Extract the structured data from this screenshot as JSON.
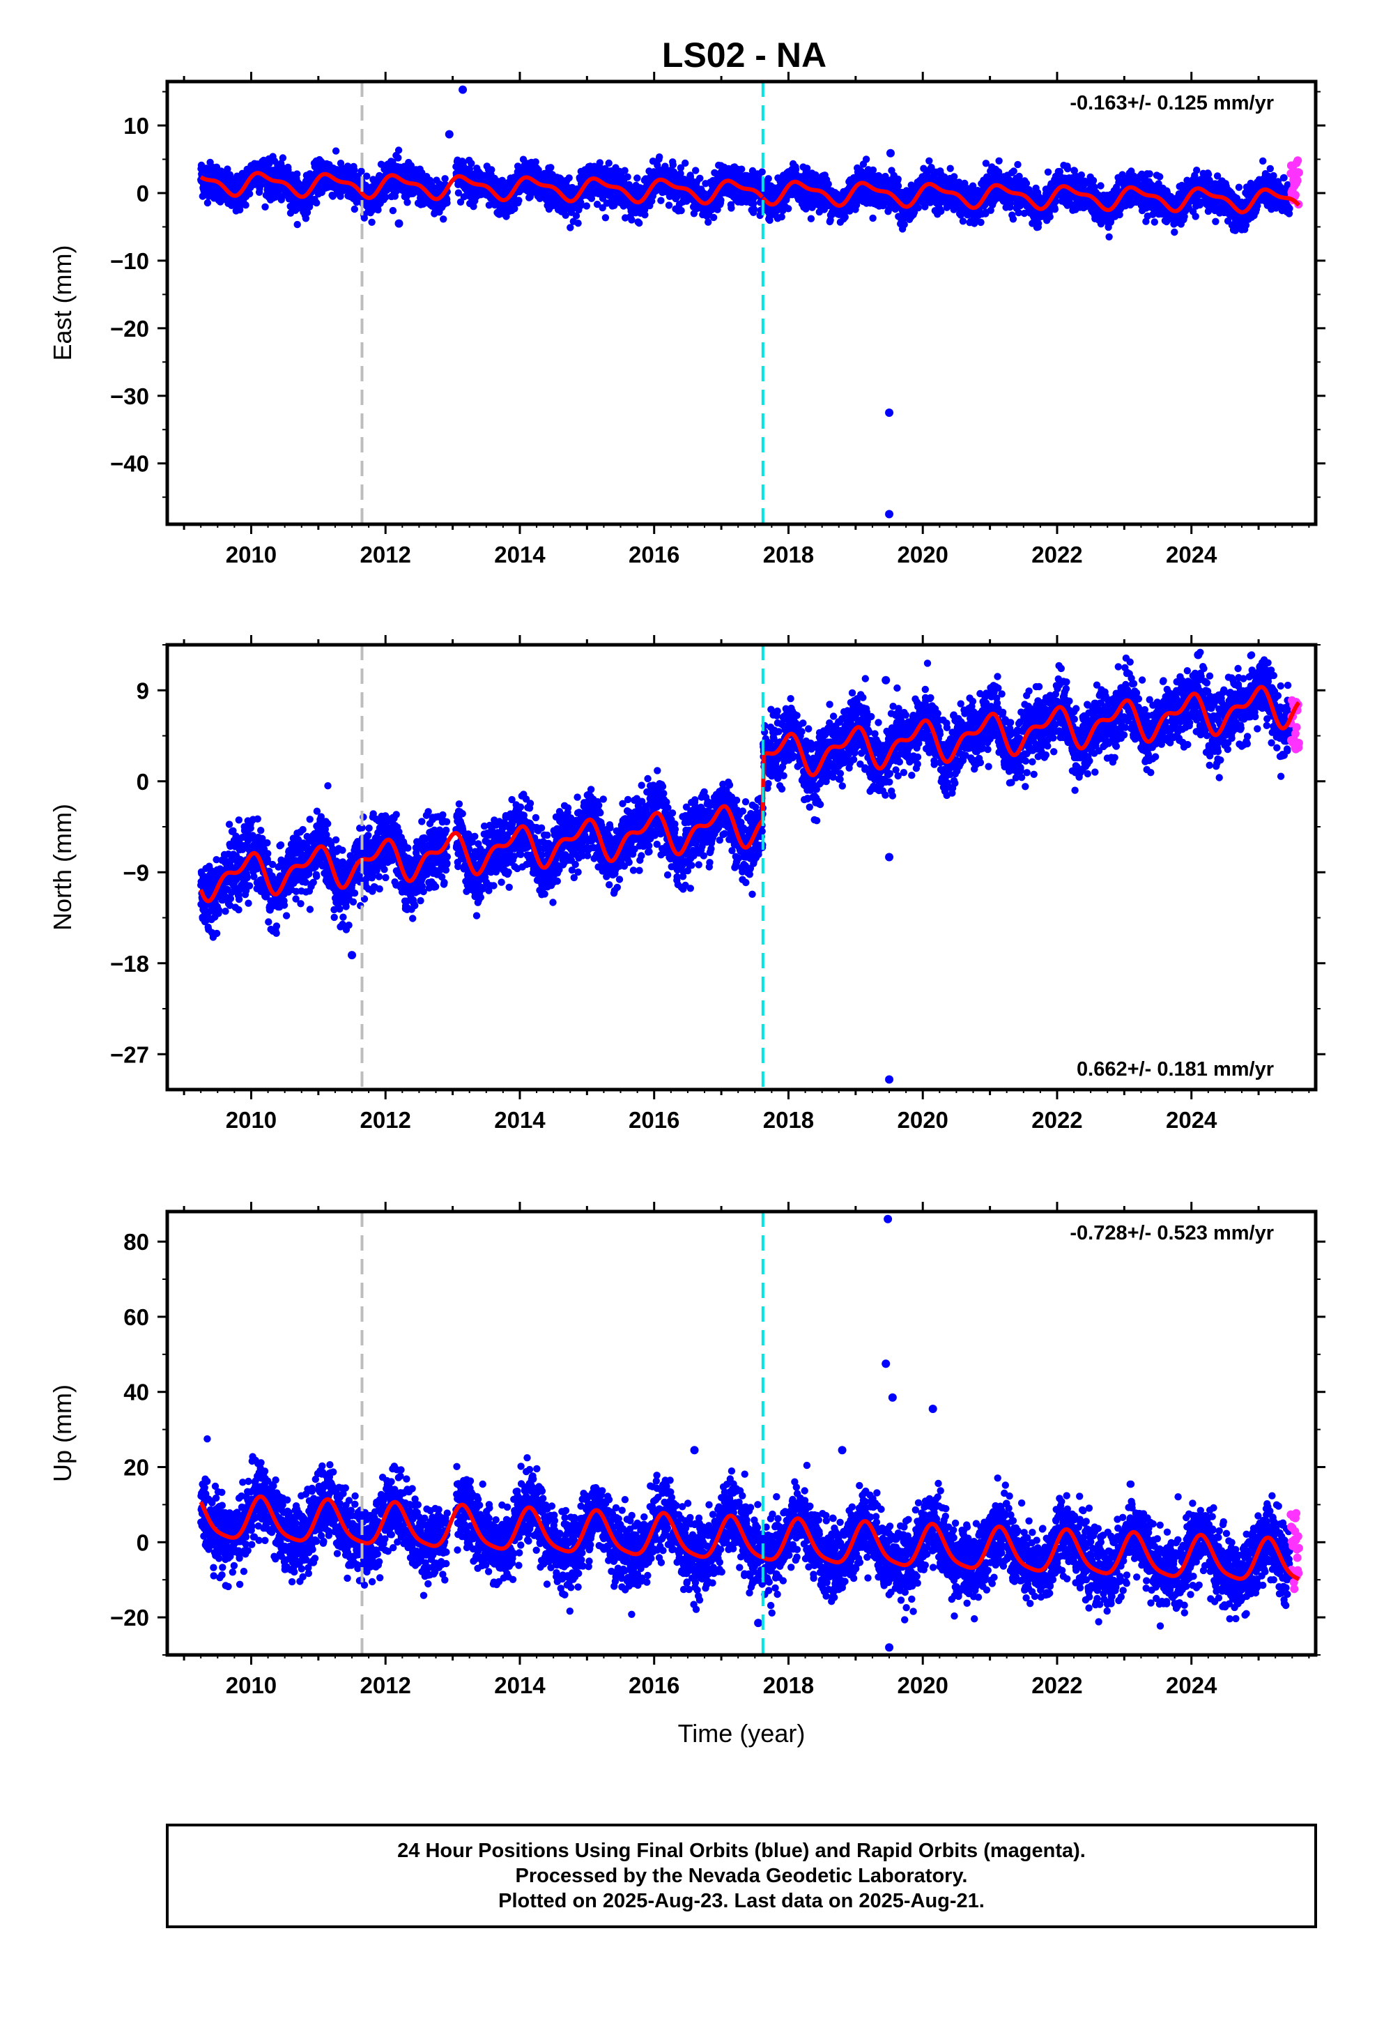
{
  "title": "LS02 - NA",
  "xlabel": "Time (year)",
  "colors": {
    "final_orbits": "#0000ff",
    "rapid_orbits": "#ff33ff",
    "model_fit": "#ff0000",
    "equipment_change": "#bdbdbd",
    "earthquake": "#00e5e5",
    "frame": "#000000"
  },
  "footer": {
    "line1": "24 Hour Positions Using Final Orbits (blue) and Rapid Orbits (magenta).",
    "line2": "Processed by the Nevada Geodetic Laboratory.",
    "line3": "Plotted on 2025-Aug-23. Last data on 2025-Aug-21."
  },
  "chart_data": [
    {
      "type": "scatter",
      "component": "east",
      "ylabel": "East (mm)",
      "xlim": [
        2008.75,
        2025.85
      ],
      "ylim": [
        -49,
        16.5
      ],
      "xticks": [
        2010,
        2012,
        2014,
        2016,
        2018,
        2020,
        2022,
        2024
      ],
      "yticks": [
        10,
        0,
        -10,
        -20,
        -30,
        -40
      ],
      "rate_label": "-0.163+/- 0.125 mm/yr",
      "rate_position": "top-right",
      "vertical_lines": [
        {
          "x": 2011.65,
          "kind": "equipment_change",
          "style": "dashed"
        },
        {
          "x": 2017.62,
          "kind": "earthquake",
          "style": "dashed"
        }
      ],
      "data_gap": [
        2012.92,
        2013.05
      ],
      "trend": {
        "rate": -0.163,
        "offset_2017": 0.3,
        "step_2017": 0,
        "ref_x": 2017
      },
      "seasonal": {
        "annual_amp": 1.4,
        "annual_phase": 0.3,
        "semi_amp": 0.6,
        "semi_phase": 1.1,
        "noise": 1.3
      },
      "outliers": [
        {
          "x": 2013.15,
          "y": 15.3
        },
        {
          "x": 2012.95,
          "y": 8.7
        },
        {
          "x": 2019.5,
          "y": -32.5
        },
        {
          "x": 2019.5,
          "y": -47.5
        },
        {
          "x": 2019.52,
          "y": 5.9
        },
        {
          "x": 2012.2,
          "y": -4.5
        }
      ],
      "rapid_range": [
        2025.48,
        2025.6
      ],
      "rapid_spread": [
        -2,
        5
      ]
    },
    {
      "type": "scatter",
      "component": "north",
      "ylabel": "North (mm)",
      "xlim": [
        2008.75,
        2025.85
      ],
      "ylim": [
        -30.5,
        13.5
      ],
      "xticks": [
        2010,
        2012,
        2014,
        2016,
        2018,
        2020,
        2022,
        2024
      ],
      "yticks": [
        9,
        0,
        -9,
        -18,
        -27
      ],
      "rate_label": "0.662+/- 0.181 mm/yr",
      "rate_position": "bottom-right",
      "vertical_lines": [
        {
          "x": 2011.65,
          "kind": "equipment_change",
          "style": "dashed"
        },
        {
          "x": 2017.62,
          "kind": "earthquake",
          "style": "dashed"
        }
      ],
      "data_gap": [
        2012.92,
        2013.05
      ],
      "trend": {
        "rate": 0.662,
        "offset_2017": -4.5,
        "step_2017": 6.5,
        "ref_x": 2017
      },
      "seasonal": {
        "annual_amp": 1.6,
        "annual_phase": 2.0,
        "semi_amp": 0.9,
        "semi_phase": 0.5,
        "noise": 1.6
      },
      "outliers": [
        {
          "x": 2019.5,
          "y": -29.5
        },
        {
          "x": 2019.5,
          "y": -7.5
        },
        {
          "x": 2024.1,
          "y": 12.5
        },
        {
          "x": 2019.45,
          "y": 10.0
        },
        {
          "x": 2011.5,
          "y": -17.2
        }
      ],
      "rapid_range": [
        2025.48,
        2025.6
      ],
      "rapid_spread": [
        3,
        8
      ]
    },
    {
      "type": "scatter",
      "component": "up",
      "ylabel": "Up (mm)",
      "xlabel": "Time (year)",
      "xlim": [
        2008.75,
        2025.85
      ],
      "ylim": [
        -30,
        88
      ],
      "xticks": [
        2010,
        2012,
        2014,
        2016,
        2018,
        2020,
        2022,
        2024
      ],
      "yticks": [
        80,
        60,
        40,
        20,
        0,
        -20
      ],
      "rate_label": "-0.728+/- 0.523 mm/yr",
      "rate_position": "top-right",
      "vertical_lines": [
        {
          "x": 2011.65,
          "kind": "equipment_change",
          "style": "dashed"
        },
        {
          "x": 2017.62,
          "kind": "earthquake",
          "style": "dashed"
        }
      ],
      "data_gap": [
        2012.92,
        2013.05
      ],
      "trend": {
        "rate": -0.728,
        "offset_2017": 0.5,
        "step_2017": 0,
        "ref_x": 2017
      },
      "seasonal": {
        "annual_amp": 5.5,
        "annual_phase": 0.6,
        "semi_amp": 1.2,
        "semi_phase": 0.0,
        "noise": 4.8
      },
      "outliers": [
        {
          "x": 2019.48,
          "y": 86
        },
        {
          "x": 2019.45,
          "y": 47.5
        },
        {
          "x": 2019.55,
          "y": 38.5
        },
        {
          "x": 2020.15,
          "y": 35.5
        },
        {
          "x": 2019.5,
          "y": -28
        },
        {
          "x": 2017.55,
          "y": -21.5
        },
        {
          "x": 2018.8,
          "y": 24.5
        },
        {
          "x": 2016.6,
          "y": 24.5
        }
      ],
      "rapid_range": [
        2025.48,
        2025.6
      ],
      "rapid_spread": [
        -13,
        8
      ]
    }
  ]
}
